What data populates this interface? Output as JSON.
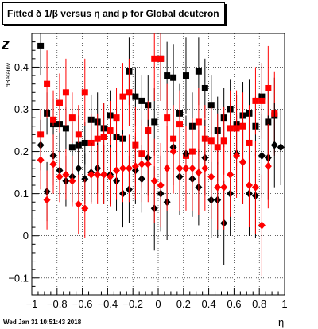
{
  "title": "Fitted δ 1/β versus η and p for Global deuteron",
  "timestamp": "Wed Jan 31 10:51:43 2018",
  "chart_data": {
    "type": "scatter",
    "title": "Fitted δ 1/β versus η and p for Global deuteron",
    "xlabel": "η",
    "ylabel_main": "z",
    "ylabel_sub": "dBetainv",
    "xlim": [
      -1,
      1
    ],
    "ylim": [
      -0.14,
      0.48
    ],
    "x_ticks": [
      -1,
      -0.8,
      -0.6,
      -0.4,
      -0.2,
      0,
      0.2,
      0.4,
      0.6,
      0.8,
      1
    ],
    "x_tick_labels": [
      "−1",
      "−0.8",
      "−0.6",
      "−0.4",
      "−0.2",
      "0",
      "0.2",
      "0.4",
      "0.6",
      "0.8",
      "1"
    ],
    "y_ticks": [
      -0.1,
      0,
      0.1,
      0.2,
      0.3,
      0.4
    ],
    "y_tick_labels": [
      "−0.1",
      "0",
      "0.1",
      "0.2",
      "0.3",
      "0.4"
    ],
    "grid": true,
    "series": [
      {
        "marker": "square",
        "color": "#000000",
        "points": [
          {
            "x": -0.93,
            "y": 0.45,
            "err": 0.07
          },
          {
            "x": -0.88,
            "y": 0.29,
            "err": 0.05
          },
          {
            "x": -0.83,
            "y": 0.265,
            "err": 0.06
          },
          {
            "x": -0.78,
            "y": 0.265,
            "err": 0.07
          },
          {
            "x": -0.73,
            "y": 0.255,
            "err": 0.05
          },
          {
            "x": -0.68,
            "y": 0.21,
            "err": 0.06
          },
          {
            "x": -0.63,
            "y": 0.215,
            "err": 0.07
          },
          {
            "x": -0.58,
            "y": 0.22,
            "err": 0.05
          },
          {
            "x": -0.53,
            "y": 0.275,
            "err": 0.06
          },
          {
            "x": -0.48,
            "y": 0.27,
            "err": 0.07
          },
          {
            "x": -0.43,
            "y": 0.255,
            "err": 0.06
          },
          {
            "x": -0.38,
            "y": 0.285,
            "err": 0.06
          },
          {
            "x": -0.33,
            "y": 0.235,
            "err": 0.07
          },
          {
            "x": -0.28,
            "y": 0.23,
            "err": 0.06
          },
          {
            "x": -0.23,
            "y": 0.39,
            "err": 0.08
          },
          {
            "x": -0.18,
            "y": 0.33,
            "err": 0.07
          },
          {
            "x": -0.13,
            "y": 0.32,
            "err": 0.06
          },
          {
            "x": -0.08,
            "y": 0.31,
            "err": 0.07
          },
          {
            "x": -0.03,
            "y": 0.27,
            "err": 0.08
          },
          {
            "x": 0.02,
            "y": 0.42,
            "err": 0.1
          },
          {
            "x": 0.07,
            "y": 0.38,
            "err": 0.08
          },
          {
            "x": 0.12,
            "y": 0.375,
            "err": 0.08
          },
          {
            "x": 0.17,
            "y": 0.29,
            "err": 0.07
          },
          {
            "x": 0.22,
            "y": 0.38,
            "err": 0.09
          },
          {
            "x": 0.27,
            "y": 0.26,
            "err": 0.08
          },
          {
            "x": 0.32,
            "y": 0.39,
            "err": 0.08
          },
          {
            "x": 0.37,
            "y": 0.35,
            "err": 0.07
          },
          {
            "x": 0.42,
            "y": 0.31,
            "err": 0.07
          },
          {
            "x": 0.47,
            "y": 0.25,
            "err": 0.08
          },
          {
            "x": 0.52,
            "y": 0.28,
            "err": 0.07
          },
          {
            "x": 0.57,
            "y": 0.3,
            "err": 0.07
          },
          {
            "x": 0.62,
            "y": 0.265,
            "err": 0.07
          },
          {
            "x": 0.67,
            "y": 0.285,
            "err": 0.08
          },
          {
            "x": 0.72,
            "y": 0.29,
            "err": 0.08
          },
          {
            "x": 0.77,
            "y": 0.26,
            "err": 0.07
          },
          {
            "x": 0.82,
            "y": 0.33,
            "err": 0.08
          },
          {
            "x": 0.87,
            "y": 0.27,
            "err": 0.08
          },
          {
            "x": 0.92,
            "y": 0.285,
            "err": 0.09
          }
        ]
      },
      {
        "marker": "square",
        "color": "#ff0000",
        "points": [
          {
            "x": -0.93,
            "y": 0.24,
            "err": 0.06
          },
          {
            "x": -0.88,
            "y": 0.36,
            "err": 0.08
          },
          {
            "x": -0.83,
            "y": 0.275,
            "err": 0.07
          },
          {
            "x": -0.78,
            "y": 0.315,
            "err": 0.07
          },
          {
            "x": -0.73,
            "y": 0.34,
            "err": 0.08
          },
          {
            "x": -0.68,
            "y": 0.28,
            "err": 0.06
          },
          {
            "x": -0.63,
            "y": 0.24,
            "err": 0.07
          },
          {
            "x": -0.58,
            "y": 0.34,
            "err": 0.08
          },
          {
            "x": -0.53,
            "y": 0.22,
            "err": 0.07
          },
          {
            "x": -0.48,
            "y": 0.23,
            "err": 0.06
          },
          {
            "x": -0.43,
            "y": 0.235,
            "err": 0.08
          },
          {
            "x": -0.38,
            "y": 0.25,
            "err": 0.07
          },
          {
            "x": -0.33,
            "y": 0.28,
            "err": 0.07
          },
          {
            "x": -0.28,
            "y": 0.33,
            "err": 0.08
          },
          {
            "x": -0.23,
            "y": 0.34,
            "err": 0.08
          },
          {
            "x": -0.18,
            "y": 0.215,
            "err": 0.09
          },
          {
            "x": -0.13,
            "y": 0.195,
            "err": 0.08
          },
          {
            "x": -0.08,
            "y": 0.25,
            "err": 0.07
          },
          {
            "x": -0.03,
            "y": 0.42,
            "err": 0.1
          },
          {
            "x": 0.02,
            "y": 0.42,
            "err": 0.1
          },
          {
            "x": 0.07,
            "y": 0.28,
            "err": 0.08
          },
          {
            "x": 0.12,
            "y": 0.23,
            "err": 0.08
          },
          {
            "x": 0.17,
            "y": 0.265,
            "err": 0.08
          },
          {
            "x": 0.22,
            "y": 0.19,
            "err": 0.09
          },
          {
            "x": 0.27,
            "y": 0.2,
            "err": 0.08
          },
          {
            "x": 0.32,
            "y": 0.27,
            "err": 0.08
          },
          {
            "x": 0.37,
            "y": 0.23,
            "err": 0.08
          },
          {
            "x": 0.42,
            "y": 0.225,
            "err": 0.08
          },
          {
            "x": 0.47,
            "y": 0.21,
            "err": 0.08
          },
          {
            "x": 0.52,
            "y": 0.225,
            "err": 0.08
          },
          {
            "x": 0.57,
            "y": 0.255,
            "err": 0.09
          },
          {
            "x": 0.62,
            "y": 0.255,
            "err": 0.09
          },
          {
            "x": 0.67,
            "y": 0.26,
            "err": 0.08
          },
          {
            "x": 0.72,
            "y": 0.22,
            "err": 0.09
          },
          {
            "x": 0.77,
            "y": 0.32,
            "err": 0.08
          },
          {
            "x": 0.82,
            "y": 0.32,
            "err": 0.09
          },
          {
            "x": 0.87,
            "y": 0.35,
            "err": 0.1
          },
          {
            "x": 0.92,
            "y": 0.29,
            "err": 0.1
          }
        ]
      },
      {
        "marker": "diamond",
        "color": "#000000",
        "points": [
          {
            "x": -0.93,
            "y": 0.215,
            "err": 0.06
          },
          {
            "x": -0.88,
            "y": 0.105,
            "err": 0.07
          },
          {
            "x": -0.83,
            "y": 0.19,
            "err": 0.07
          },
          {
            "x": -0.78,
            "y": 0.155,
            "err": 0.06
          },
          {
            "x": -0.73,
            "y": 0.13,
            "err": 0.06
          },
          {
            "x": -0.68,
            "y": 0.14,
            "err": 0.06
          },
          {
            "x": -0.63,
            "y": 0.16,
            "err": 0.06
          },
          {
            "x": -0.58,
            "y": 0.135,
            "err": 0.06
          },
          {
            "x": -0.53,
            "y": 0.15,
            "err": 0.07
          },
          {
            "x": -0.48,
            "y": 0.16,
            "err": 0.06
          },
          {
            "x": -0.43,
            "y": 0.145,
            "err": 0.07
          },
          {
            "x": -0.38,
            "y": 0.145,
            "err": 0.07
          },
          {
            "x": -0.33,
            "y": 0.13,
            "err": 0.07
          },
          {
            "x": -0.28,
            "y": 0.1,
            "err": 0.08
          },
          {
            "x": -0.23,
            "y": 0.11,
            "err": 0.08
          },
          {
            "x": -0.18,
            "y": 0.155,
            "err": 0.08
          },
          {
            "x": -0.13,
            "y": 0.135,
            "err": 0.08
          },
          {
            "x": -0.08,
            "y": 0.185,
            "err": 0.09
          },
          {
            "x": -0.03,
            "y": 0.065,
            "err": 0.1
          },
          {
            "x": 0.02,
            "y": 0.1,
            "err": 0.09
          },
          {
            "x": 0.07,
            "y": 0.08,
            "err": 0.09
          },
          {
            "x": 0.12,
            "y": 0.21,
            "err": 0.09
          },
          {
            "x": 0.17,
            "y": 0.14,
            "err": 0.09
          },
          {
            "x": 0.22,
            "y": 0.195,
            "err": 0.09
          },
          {
            "x": 0.27,
            "y": 0.135,
            "err": 0.09
          },
          {
            "x": 0.32,
            "y": 0.115,
            "err": 0.09
          },
          {
            "x": 0.37,
            "y": 0.185,
            "err": 0.09
          },
          {
            "x": 0.42,
            "y": 0.085,
            "err": 0.09
          },
          {
            "x": 0.47,
            "y": 0.085,
            "err": 0.09
          },
          {
            "x": 0.52,
            "y": 0.03,
            "err": 0.1
          },
          {
            "x": 0.57,
            "y": 0.1,
            "err": 0.1
          },
          {
            "x": 0.62,
            "y": 0.195,
            "err": 0.09
          },
          {
            "x": 0.67,
            "y": 0.175,
            "err": 0.1
          },
          {
            "x": 0.72,
            "y": 0.1,
            "err": 0.1
          },
          {
            "x": 0.77,
            "y": 0.095,
            "err": 0.1
          },
          {
            "x": 0.82,
            "y": 0.19,
            "err": 0.1
          },
          {
            "x": 0.87,
            "y": 0.185,
            "err": 0.1
          },
          {
            "x": 0.92,
            "y": 0.215,
            "err": 0.1
          },
          {
            "x": 0.97,
            "y": 0.21,
            "err": 0.09
          }
        ]
      },
      {
        "marker": "diamond",
        "color": "#ff0000",
        "points": [
          {
            "x": -0.93,
            "y": 0.18,
            "err": 0.07
          },
          {
            "x": -0.88,
            "y": 0.085,
            "err": 0.07
          },
          {
            "x": -0.83,
            "y": 0.17,
            "err": 0.07
          },
          {
            "x": -0.78,
            "y": 0.14,
            "err": 0.06
          },
          {
            "x": -0.73,
            "y": 0.145,
            "err": 0.06
          },
          {
            "x": -0.68,
            "y": 0.13,
            "err": 0.06
          },
          {
            "x": -0.63,
            "y": 0.075,
            "err": 0.07
          },
          {
            "x": -0.58,
            "y": 0.065,
            "err": 0.07
          },
          {
            "x": -0.53,
            "y": 0.145,
            "err": 0.07
          },
          {
            "x": -0.48,
            "y": 0.145,
            "err": 0.07
          },
          {
            "x": -0.43,
            "y": 0.145,
            "err": 0.07
          },
          {
            "x": -0.38,
            "y": 0.14,
            "err": 0.07
          },
          {
            "x": -0.33,
            "y": 0.155,
            "err": 0.07
          },
          {
            "x": -0.28,
            "y": 0.16,
            "err": 0.08
          },
          {
            "x": -0.23,
            "y": 0.16,
            "err": 0.08
          },
          {
            "x": -0.18,
            "y": 0.165,
            "err": 0.08
          },
          {
            "x": -0.13,
            "y": 0.17,
            "err": 0.09
          },
          {
            "x": -0.08,
            "y": 0.17,
            "err": 0.09
          },
          {
            "x": -0.03,
            "y": 0.13,
            "err": 0.1
          },
          {
            "x": 0.02,
            "y": 0.12,
            "err": 0.1
          },
          {
            "x": 0.07,
            "y": 0.16,
            "err": 0.1
          },
          {
            "x": 0.12,
            "y": 0.2,
            "err": 0.1
          },
          {
            "x": 0.17,
            "y": 0.16,
            "err": 0.1
          },
          {
            "x": 0.22,
            "y": 0.16,
            "err": 0.1
          },
          {
            "x": 0.27,
            "y": 0.16,
            "err": 0.1
          },
          {
            "x": 0.32,
            "y": 0.15,
            "err": 0.1
          },
          {
            "x": 0.37,
            "y": 0.16,
            "err": 0.1
          },
          {
            "x": 0.42,
            "y": 0.14,
            "err": 0.1
          },
          {
            "x": 0.47,
            "y": 0.115,
            "err": 0.1
          },
          {
            "x": 0.52,
            "y": 0.115,
            "err": 0.1
          },
          {
            "x": 0.57,
            "y": 0.145,
            "err": 0.1
          },
          {
            "x": 0.62,
            "y": 0.19,
            "err": 0.1
          },
          {
            "x": 0.67,
            "y": 0.175,
            "err": 0.1
          },
          {
            "x": 0.72,
            "y": 0.12,
            "err": 0.1
          },
          {
            "x": 0.77,
            "y": 0.115,
            "err": 0.11
          },
          {
            "x": 0.82,
            "y": 0.025,
            "err": 0.12
          },
          {
            "x": 0.87,
            "y": 0.165,
            "err": 0.1
          }
        ]
      }
    ]
  }
}
